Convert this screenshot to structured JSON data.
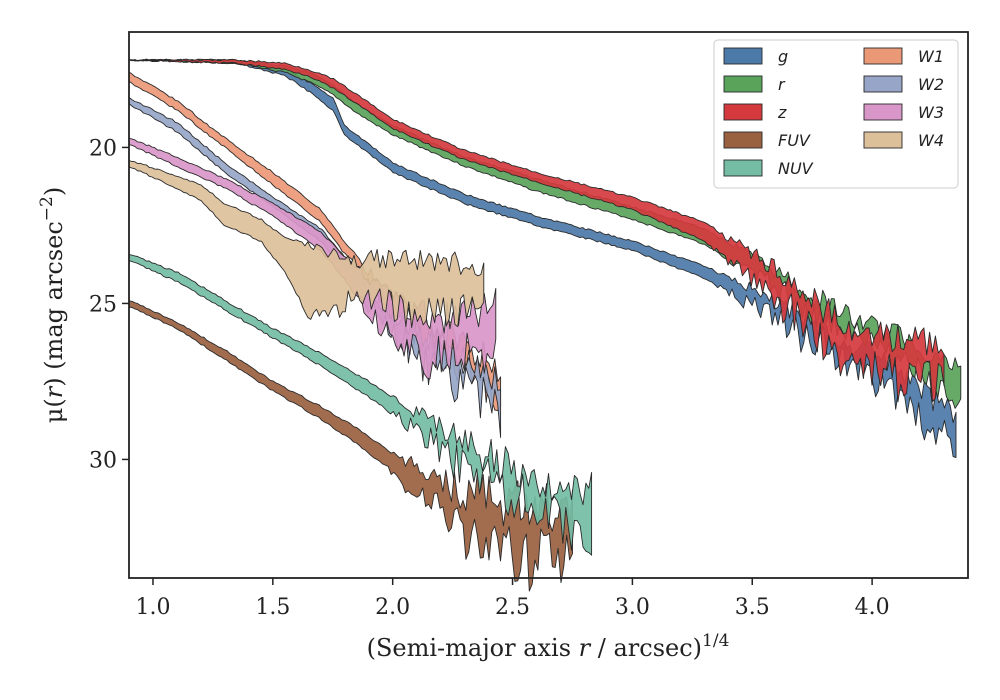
{
  "chart_data": {
    "type": "area",
    "xlabel": "(Semi-major axis r / arcsec)^1/4",
    "xlabel_parts": {
      "prefix": "(Semi-major axis ",
      "var": "r",
      "suffix": " / arcsec)",
      "exp": "1/4"
    },
    "ylabel": "μ(r) (mag arcsec^−2)",
    "ylabel_parts": {
      "prefix": "μ(",
      "var": "r",
      "mid": ") (mag arcsec",
      "exp": "−2",
      "suffix": ")"
    },
    "xlim": [
      0.9,
      4.4
    ],
    "ylim": [
      33.8,
      16.3
    ],
    "y_inverted": true,
    "xticks": [
      1.0,
      1.5,
      2.0,
      2.5,
      3.0,
      3.5,
      4.0
    ],
    "xtick_labels": [
      "1.0",
      "1.5",
      "2.0",
      "2.5",
      "3.0",
      "3.5",
      "4.0"
    ],
    "yticks": [
      20,
      25,
      30
    ],
    "ytick_labels": [
      "20",
      "25",
      "30"
    ],
    "grid": false,
    "legend_position": "top-right",
    "legend_columns": 2,
    "series": [
      {
        "name": "g",
        "color": "#4c7aa8",
        "x": [
          0.9,
          1.35,
          1.55,
          1.65,
          1.75,
          1.8,
          2.0,
          2.3,
          2.6,
          3.0,
          3.3,
          3.5,
          3.7,
          3.9,
          4.1,
          4.25,
          4.35
        ],
        "y_upper": [
          17.2,
          17.2,
          17.5,
          17.9,
          18.4,
          19.3,
          20.5,
          21.5,
          22.2,
          23.0,
          23.8,
          24.5,
          25.3,
          26.2,
          27.0,
          28.0,
          28.5
        ],
        "y_lower": [
          17.2,
          17.3,
          17.7,
          18.2,
          18.8,
          19.6,
          20.8,
          21.8,
          22.5,
          23.3,
          24.2,
          25.0,
          25.9,
          26.8,
          27.8,
          29.0,
          29.5
        ],
        "noisy_from": 3.3,
        "noise": 0.6
      },
      {
        "name": "r",
        "color": "#5aa35a",
        "x": [
          0.9,
          1.35,
          1.55,
          1.65,
          1.75,
          1.85,
          2.0,
          2.3,
          2.6,
          3.0,
          3.3,
          3.5,
          3.7,
          3.9,
          4.1,
          4.3,
          4.37
        ],
        "y_upper": [
          17.2,
          17.2,
          17.4,
          17.6,
          18.0,
          18.6,
          19.3,
          20.3,
          21.0,
          21.9,
          22.6,
          23.5,
          24.5,
          25.4,
          26.0,
          26.9,
          27.1
        ],
        "y_lower": [
          17.2,
          17.3,
          17.6,
          17.9,
          18.3,
          18.9,
          19.6,
          20.6,
          21.4,
          22.3,
          23.1,
          24.0,
          25.0,
          25.9,
          26.6,
          27.8,
          28.0
        ],
        "noisy_from": 3.3,
        "noise": 0.5
      },
      {
        "name": "z",
        "color": "#d43a3d",
        "x": [
          0.9,
          1.35,
          1.55,
          1.65,
          1.75,
          1.85,
          2.0,
          2.3,
          2.6,
          3.0,
          3.3,
          3.5,
          3.7,
          3.9,
          4.1,
          4.3
        ],
        "y_upper": [
          17.2,
          17.2,
          17.3,
          17.5,
          17.8,
          18.3,
          19.1,
          20.1,
          20.8,
          21.6,
          22.4,
          23.4,
          24.6,
          25.7,
          26.1,
          26.3
        ],
        "y_lower": [
          17.2,
          17.3,
          17.5,
          17.7,
          18.1,
          18.6,
          19.4,
          20.4,
          21.1,
          22.0,
          23.0,
          24.2,
          25.5,
          26.7,
          27.3,
          27.4
        ],
        "noisy_from": 3.3,
        "noise": 0.7
      },
      {
        "name": "FUV",
        "color": "#9a6140",
        "x": [
          0.9,
          1.1,
          1.3,
          1.5,
          1.7,
          1.85,
          2.0,
          2.2,
          2.4,
          2.6,
          2.75
        ],
        "y_upper": [
          24.9,
          25.6,
          26.5,
          27.5,
          28.3,
          29.0,
          29.8,
          30.7,
          31.3,
          31.5,
          31.6
        ],
        "y_lower": [
          25.1,
          25.8,
          26.8,
          27.8,
          28.7,
          29.5,
          30.4,
          31.6,
          32.3,
          33.0,
          33.2
        ],
        "noisy_from": 1.95,
        "noise": 1.1
      },
      {
        "name": "NUV",
        "color": "#74bda4",
        "x": [
          0.9,
          1.1,
          1.3,
          1.5,
          1.7,
          1.9,
          2.1,
          2.3,
          2.5,
          2.7,
          2.83
        ],
        "y_upper": [
          23.4,
          24.0,
          24.9,
          25.8,
          26.6,
          27.5,
          28.5,
          29.5,
          30.3,
          30.9,
          31.0
        ],
        "y_lower": [
          23.6,
          24.3,
          25.2,
          26.1,
          27.0,
          28.0,
          29.0,
          30.1,
          31.0,
          31.8,
          32.1
        ],
        "noisy_from": 1.95,
        "noise": 0.9
      },
      {
        "name": "W1",
        "color": "#eb9877",
        "x": [
          0.9,
          1.1,
          1.3,
          1.5,
          1.7,
          1.8,
          1.9,
          2.0,
          2.2,
          2.4,
          2.45
        ],
        "y_upper": [
          17.6,
          18.5,
          19.7,
          20.8,
          22.0,
          23.0,
          24.0,
          24.8,
          25.8,
          26.8,
          27.1
        ],
        "y_lower": [
          17.9,
          18.8,
          20.0,
          21.2,
          22.4,
          23.4,
          24.4,
          25.3,
          26.4,
          27.5,
          27.9
        ],
        "noisy_from": 1.75,
        "noise": 0.7
      },
      {
        "name": "W2",
        "color": "#97a6c8",
        "x": [
          0.9,
          1.1,
          1.3,
          1.5,
          1.7,
          1.8,
          1.9,
          2.0,
          2.2,
          2.4,
          2.45
        ],
        "y_upper": [
          18.4,
          19.2,
          20.5,
          21.6,
          22.6,
          23.5,
          24.6,
          25.3,
          26.3,
          27.3,
          27.8
        ],
        "y_lower": [
          18.6,
          19.5,
          20.8,
          21.9,
          23.0,
          23.9,
          25.0,
          25.8,
          27.0,
          28.0,
          28.6
        ],
        "noisy_from": 1.75,
        "noise": 0.8
      },
      {
        "name": "W3",
        "color": "#d996c8",
        "x": [
          0.9,
          1.1,
          1.3,
          1.5,
          1.7,
          1.8,
          1.9,
          2.0,
          2.1,
          2.2,
          2.3,
          2.43
        ],
        "y_upper": [
          19.7,
          20.3,
          21.0,
          21.8,
          22.7,
          23.5,
          24.2,
          24.9,
          25.3,
          25.4,
          25.4,
          25.0
        ],
        "y_lower": [
          19.9,
          20.6,
          21.3,
          22.2,
          23.3,
          24.2,
          25.3,
          25.9,
          26.4,
          26.7,
          26.2,
          26.4
        ],
        "noisy_from": 1.75,
        "noise": 0.8
      },
      {
        "name": "W4",
        "color": "#dcc09a",
        "x": [
          0.9,
          1.1,
          1.2,
          1.3,
          1.45,
          1.55,
          1.65,
          1.75,
          1.9,
          2.1,
          2.38
        ],
        "y_upper": [
          20.4,
          20.9,
          21.2,
          21.8,
          22.3,
          22.9,
          23.1,
          23.4,
          23.6,
          23.7,
          23.8
        ],
        "y_lower": [
          20.6,
          21.3,
          21.7,
          22.5,
          23.0,
          24.0,
          25.4,
          25.2,
          24.6,
          25.3,
          25.2
        ],
        "noisy_from": 1.55,
        "noise": 0.6
      }
    ]
  }
}
